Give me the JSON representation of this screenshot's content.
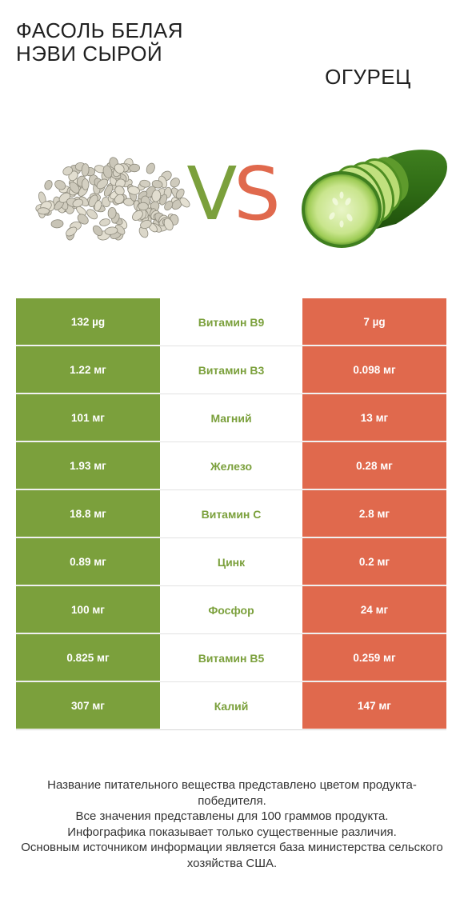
{
  "header": {
    "left_title": "ФАСОЛЬ БЕЛАЯ НЭВИ СЫРОЙ",
    "right_title": "ОГУРЕЦ",
    "vs_v": "V",
    "vs_s": "S"
  },
  "colors": {
    "left_winner": "#7ba03c",
    "right_winner": "#e0694d"
  },
  "rows": [
    {
      "left": "132 µg",
      "name": "Витамин B9",
      "right": "7 µg",
      "winner": "left"
    },
    {
      "left": "1.22 мг",
      "name": "Витамин B3",
      "right": "0.098 мг",
      "winner": "left"
    },
    {
      "left": "101 мг",
      "name": "Магний",
      "right": "13 мг",
      "winner": "left"
    },
    {
      "left": "1.93 мг",
      "name": "Железо",
      "right": "0.28 мг",
      "winner": "left"
    },
    {
      "left": "18.8 мг",
      "name": "Витамин C",
      "right": "2.8 мг",
      "winner": "left"
    },
    {
      "left": "0.89 мг",
      "name": "Цинк",
      "right": "0.2 мг",
      "winner": "left"
    },
    {
      "left": "100 мг",
      "name": "Фосфор",
      "right": "24 мг",
      "winner": "left"
    },
    {
      "left": "0.825 мг",
      "name": "Витамин B5",
      "right": "0.259 мг",
      "winner": "left"
    },
    {
      "left": "307 мг",
      "name": "Калий",
      "right": "147 мг",
      "winner": "left"
    }
  ],
  "footer": {
    "line1": "Название питательного вещества представлено цветом продукта-победителя.",
    "line2": "Все значения представлены для 100 граммов продукта.",
    "line3": "Инфографика показывает только существенные различия.",
    "line4": "Основным источником информации является база министерства сельского хозяйства США."
  }
}
